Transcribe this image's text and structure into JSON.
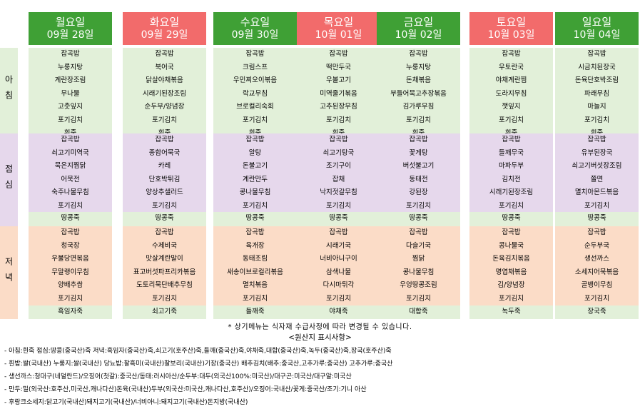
{
  "colors": {
    "weekday_header": "#3fa035",
    "weekend_header": "#f26b6b",
    "breakfast_bg": "#e2f0d9",
    "lunch_bg": "#e6d8ec",
    "dinner_bg": "#fbdcc7"
  },
  "meals": {
    "breakfast": "아침",
    "lunch": "점심",
    "dinner": "저녁"
  },
  "days": [
    {
      "day": "월요일",
      "date": "09월 28일",
      "weekend": false,
      "breakfast": [
        "잡곡밥",
        "누룽지탕",
        "계란장조림",
        "무나물",
        "고춧잎지",
        "포기김치",
        "흰죽"
      ],
      "lunch": [
        "잡곡밥",
        "쇠고기미역국",
        "묵은지찜닭",
        "어묵전",
        "숙주나물무침",
        "포기김치",
        "땅콩죽"
      ],
      "dinner": [
        "잡곡밥",
        "청국장",
        "우불당면볶음",
        "무말랭이무침",
        "양배추쌈",
        "포기김치",
        "흑임자죽"
      ]
    },
    {
      "day": "화요일",
      "date": "09월 29일",
      "weekend": true,
      "breakfast": [
        "잡곡밥",
        "북어국",
        "닭살야채볶음",
        "시래기된장조림",
        "순두부/양념장",
        "포기김치",
        "흰죽"
      ],
      "lunch": [
        "잡곡밥",
        "종합어묵국",
        "카레",
        "단호박튀김",
        "양상추샐러드",
        "포기김치",
        "땅콩죽"
      ],
      "dinner": [
        "잡곡밥",
        "수제비국",
        "맛살계란말이",
        "표고버섯파프리카볶음",
        "도토리묵단배추무침",
        "포기김치",
        "쇠고기죽"
      ]
    },
    {
      "day": "수요일",
      "date": "09월 30일",
      "weekend": false,
      "breakfast": [
        "잡곡밥",
        "크림스프",
        "우민찌오이볶음",
        "락교무침",
        "브로컬리숙회",
        "포기김치",
        "흰죽"
      ],
      "lunch": [
        "잡곡밥",
        "알탕",
        "돈불고기",
        "계란만두",
        "콩나물무침",
        "포기김치",
        "땅콩죽"
      ],
      "dinner": [
        "잡곡밥",
        "육개장",
        "동태조림",
        "새송이브로컬리볶음",
        "멸치볶음",
        "포기김치",
        "들깨죽"
      ]
    },
    {
      "day": "목요일",
      "date": "10월 01일",
      "weekend": true,
      "breakfast": [
        "잡곡밥",
        "떡만두국",
        "우볼고기",
        "미역줄기볶음",
        "고추된장무침",
        "포기김치",
        "흰죽"
      ],
      "lunch": [
        "잡곡밥",
        "쇠고기탕국",
        "조기구이",
        "잡채",
        "낙지젓갈무침",
        "포기김치",
        "땅콩죽"
      ],
      "dinner": [
        "잡곡밥",
        "시래기국",
        "너비아니구이",
        "삼색나물",
        "다시마튀각",
        "포기김치",
        "야채죽"
      ]
    },
    {
      "day": "금요일",
      "date": "10월 02일",
      "weekend": false,
      "breakfast": [
        "잡곡밥",
        "누룽지탕",
        "돈채볶음",
        "부들어묵고추장볶음",
        "김가루무침",
        "포기김치",
        "흰죽"
      ],
      "lunch": [
        "잡곡밥",
        "꽃게탕",
        "버섯불고기",
        "동태전",
        "강된장",
        "포기김치",
        "땅콩죽"
      ],
      "dinner": [
        "잡곡밥",
        "다슬기국",
        "찜닭",
        "콩나물무침",
        "우엉땅콩조림",
        "포기김치",
        "대합죽"
      ]
    },
    {
      "day": "토요일",
      "date": "10월 03일",
      "weekend": true,
      "breakfast": [
        "잡곡밥",
        "우토란국",
        "야채계란찜",
        "도라지무침",
        "깻잎지",
        "포기김치",
        "흰죽"
      ],
      "lunch": [
        "잡곡밥",
        "들깨무국",
        "마파두부",
        "김치전",
        "시래기된장조림",
        "포기김치",
        "땅콩죽"
      ],
      "dinner": [
        "잡곡밥",
        "콩나물국",
        "돈육김치볶음",
        "명엽채볶음",
        "김/양념장",
        "포기김치",
        "녹두죽"
      ]
    },
    {
      "day": "일요일",
      "date": "10월 04일",
      "weekend": false,
      "breakfast": [
        "잡곡밥",
        "시금치된장국",
        "돈육단호박조림",
        "파래무침",
        "마늘지",
        "포기김치",
        "흰죽"
      ],
      "lunch": [
        "잡곡밥",
        "유부된장국",
        "쇠고기버섯장조림",
        "쫄면",
        "멸치아몬드볶음",
        "포기김치",
        "땅콩죽"
      ],
      "dinner": [
        "잡곡밥",
        "순두부국",
        "생선까스",
        "소세지어묵볶음",
        "골뱅이무침",
        "포기김치",
        "장국죽"
      ]
    }
  ],
  "note": "* 상기메뉴는 식자재 수급사정에 따라 변경될 수 있습니다.",
  "origin_title": "<원산지 표시사항>",
  "origin_lines": [
    "- 아침:흰죽 점심:땅콩(중국산)죽 저녁:흑임자(중국산)죽,쇠고기(호주산)죽,들깨(중국산)죽,야채죽,대합(중국산)죽,녹두(중국산)죽,장국(호주산)죽",
    "- 흰밥:쌀(국내산) 누룽지:쌀(국내산) 당뇨밥:찰흑미(국내산)찰보리(국내산)기장(중국산) 배추김치(배추:중국산,고추가루:중국산) 고추가루:중국산",
    "- 생선까스:청대구(네덜란드)/오징어(첫갈):중국산/동태:러시아산/순두부:대두(외국산100%:미국산)/대구곤:미국산/대구알:미국산",
    "- 만두:밀(외국산:호주산,미국산,캐나다산)돈육(국내산)두부(외국산:미국산,캐나다산,호주산)/오징어:국내산/꽃게:중국산/조기:기니 아산",
    "- 후랑크소세지:닭고기(국내산)돼지고기(국내산)/너비아니:돼지고기(국내산)돈지방(국내산)"
  ]
}
